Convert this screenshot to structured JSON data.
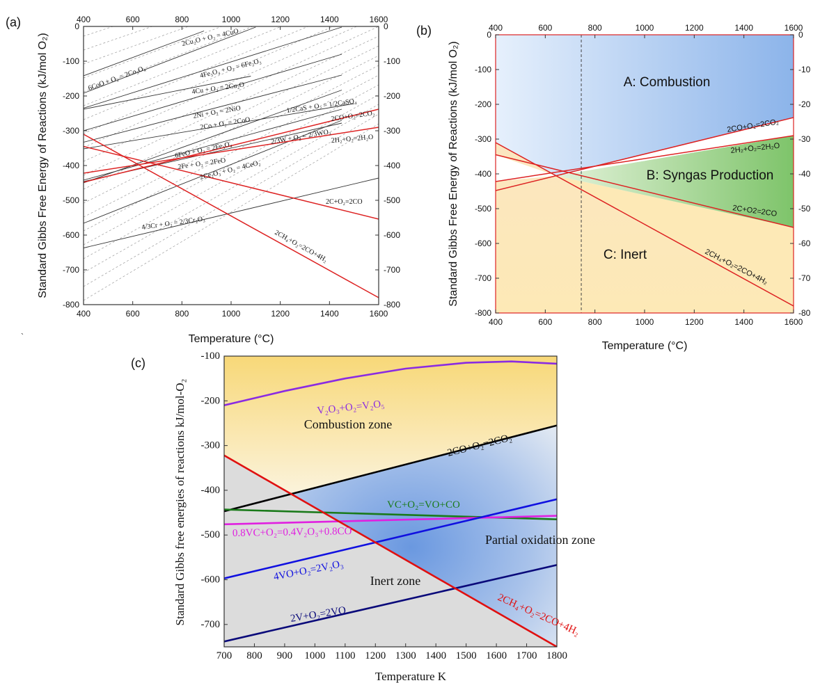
{
  "chart_data": [
    {
      "panel": "(a)",
      "type": "line",
      "xlabel": "Temperature (°C)",
      "ylabel": "Standard Gibbs Free Energy of Reactions (kJ/mol O₂)",
      "xlim": [
        400,
        1600
      ],
      "ylim": [
        -800,
        0
      ],
      "xticks": [
        400,
        600,
        800,
        1000,
        1200,
        1400,
        1600
      ],
      "yticks": [
        0,
        -100,
        -200,
        -300,
        -400,
        -500,
        -600,
        -700,
        -800
      ],
      "series": [
        {
          "label": "6CoO + O₂ = 2Co₃O₄",
          "color": "#333333",
          "x": [
            400,
            890
          ],
          "y": [
            -142,
            -13
          ]
        },
        {
          "label": "2Cu₂O + O₂ = 4CuO",
          "color": "#333333",
          "x": [
            400,
            1100
          ],
          "y": [
            -192,
            -2
          ]
        },
        {
          "label": "4Fe₃O₄ + O₂ = 6Fe₂O₃",
          "color": "#333333",
          "x": [
            400,
            1450
          ],
          "y": [
            -235,
            -2
          ]
        },
        {
          "label": "4Cu + O₂ = 2Cu₂O",
          "color": "#333333",
          "x": [
            400,
            1080
          ],
          "y": [
            -238,
            -143
          ]
        },
        {
          "label": "2Ni + O₂ = 2NiO",
          "color": "#333333",
          "x": [
            400,
            1450
          ],
          "y": [
            -300,
            -80
          ]
        },
        {
          "label": "2Co + O₂ = 2CoO",
          "color": "#333333",
          "x": [
            400,
            1450
          ],
          "y": [
            -333,
            -140
          ]
        },
        {
          "label": "1/2CaS + O₂ = 1/2CaSO₄",
          "color": "#333333",
          "x": [
            400,
            1500
          ],
          "y": [
            -352,
            -222
          ]
        },
        {
          "label": "6FeO + O₂ = 2Fe₃O₄",
          "color": "#333333",
          "x": [
            400,
            1450
          ],
          "y": [
            -450,
            -183
          ]
        },
        {
          "label": "2/3W + O₂ = 2/3WO₃",
          "color": "#333333",
          "x": [
            400,
            1450
          ],
          "y": [
            -442,
            -238
          ]
        },
        {
          "label": "2Fe + O₂ = 2FeO",
          "color": "#333333",
          "x": [
            400,
            1450
          ],
          "y": [
            -446,
            -278
          ]
        },
        {
          "label": "2Ce₂O₃ + O₂ = 4CeO₂",
          "color": "#333333",
          "x": [
            400,
            1450
          ],
          "y": [
            -566,
            -270
          ]
        },
        {
          "label": "4/3Cr + O₂ = 2/3Cr₂O₃",
          "color": "#333333",
          "x": [
            400,
            1600
          ],
          "y": [
            -637,
            -436
          ]
        },
        {
          "label": "2CO+O₂=2CO₂",
          "color": "#dd2222",
          "x": [
            400,
            1600
          ],
          "y": [
            -448,
            -238
          ]
        },
        {
          "label": "2H₂+O₂=2H₂O",
          "color": "#dd2222",
          "x": [
            400,
            1600
          ],
          "y": [
            -422,
            -290
          ]
        },
        {
          "label": "2C+O₂=2CO",
          "color": "#dd2222",
          "x": [
            400,
            1600
          ],
          "y": [
            -345,
            -554
          ]
        },
        {
          "label": "2CH₄+O₂=2CO+4H₂",
          "color": "#dd2222",
          "x": [
            400,
            1600
          ],
          "y": [
            -310,
            -780
          ]
        }
      ]
    },
    {
      "panel": "(b)",
      "type": "line",
      "xlabel": "Temperature (°C)",
      "ylabel": "Standard Gibbs Free Energy of Reactions (kJ/mol O₂)",
      "xlim": [
        400,
        1600
      ],
      "ylim": [
        -800,
        0
      ],
      "xticks": [
        400,
        600,
        800,
        1000,
        1200,
        1400,
        1600
      ],
      "yticks": [
        0,
        -100,
        -200,
        -300,
        -400,
        -500,
        -600,
        -700,
        -800
      ],
      "right_ytick_labels": [
        "0",
        "-10",
        "-20",
        "-30",
        "-40",
        "-50",
        "-60",
        "-70",
        "-80"
      ],
      "dashed_vline_x": 745,
      "zones": [
        "A: Combustion",
        "B: Syngas Production",
        "C: Inert"
      ],
      "series": [
        {
          "label": "2CO+O₂=2CO₂",
          "color": "#dd2222",
          "x": [
            400,
            1600
          ],
          "y": [
            -448,
            -238
          ]
        },
        {
          "label": "2H₂+O₂=2H₂O",
          "color": "#dd2222",
          "x": [
            400,
            1600
          ],
          "y": [
            -422,
            -290
          ]
        },
        {
          "label": "2C+O2=2CO",
          "color": "#dd2222",
          "x": [
            400,
            1600
          ],
          "y": [
            -345,
            -554
          ]
        },
        {
          "label": "2CH₄+O₂=2CO+4H₂",
          "color": "#dd2222",
          "x": [
            400,
            1600
          ],
          "y": [
            -310,
            -780
          ]
        }
      ]
    },
    {
      "panel": "(c)",
      "type": "line",
      "xlabel": "Temperature K",
      "ylabel": "Standard Gibbs free energies of reactions kJ/mol-O₂",
      "xlim": [
        700,
        1800
      ],
      "ylim": [
        -750,
        -100
      ],
      "xticks": [
        700,
        800,
        900,
        1000,
        1100,
        1200,
        1300,
        1400,
        1500,
        1600,
        1700,
        1800
      ],
      "yticks": [
        -100,
        -200,
        -300,
        -400,
        -500,
        -600,
        -700
      ],
      "zones": [
        "Combustion zone",
        "Partial oxidation zone",
        "Inert zone"
      ],
      "series": [
        {
          "label": "V₂O₃+O₂=V₂O₅",
          "color": "#8a2be2",
          "x": [
            700,
            900,
            1100,
            1300,
            1500,
            1650,
            1800
          ],
          "y": [
            -210,
            -178,
            -150,
            -128,
            -115,
            -112,
            -117
          ]
        },
        {
          "label": "2CO+O₂=2CO₂",
          "color": "#000000",
          "x": [
            700,
            1800
          ],
          "y": [
            -447,
            -255
          ]
        },
        {
          "label": "VC+O₂=VO+CO",
          "color": "#1a7a1a",
          "x": [
            700,
            1800
          ],
          "y": [
            -443,
            -465
          ]
        },
        {
          "label": "0.8VC+O₂=0.4V₂O₃+0.8CO",
          "color": "#e020e0",
          "x": [
            700,
            1800
          ],
          "y": [
            -476,
            -457
          ]
        },
        {
          "label": "4VO+O₂=2V₂O₃",
          "color": "#1010e0",
          "x": [
            700,
            1800
          ],
          "y": [
            -597,
            -420
          ]
        },
        {
          "label": "2V+O₂=2VO",
          "color": "#0a0a7a",
          "x": [
            700,
            1800
          ],
          "y": [
            -738,
            -567
          ]
        },
        {
          "label": "2CH₄+O₂=2CO+4H₂",
          "color": "#e01010",
          "x": [
            700,
            1800
          ],
          "y": [
            -322,
            -750
          ]
        }
      ]
    }
  ],
  "text": {
    "panel_a": "(a)",
    "panel_b": "(b)",
    "panel_c": "(c)",
    "stray_mark": "`",
    "a": {
      "xlabel": "Temperature (°C)",
      "ylabel": "Standard Gibbs Free Energy of Reactions (kJ/mol O₂)"
    },
    "b": {
      "xlabel": "Temperature (°C)",
      "ylabel": "Standard Gibbs Free Energy of Reactions (kJ/mol O₂)",
      "zone_a": "A: Combustion",
      "zone_b": "B: Syngas Production",
      "zone_c": "C: Inert"
    },
    "c": {
      "xlabel": "Temperature K",
      "ylabel": "Standard Gibbs free energies of reactions kJ/mol-O₂",
      "zone_combustion": "Combustion zone",
      "zone_partial": "Partial oxidation zone",
      "zone_inert": "Inert zone"
    }
  }
}
